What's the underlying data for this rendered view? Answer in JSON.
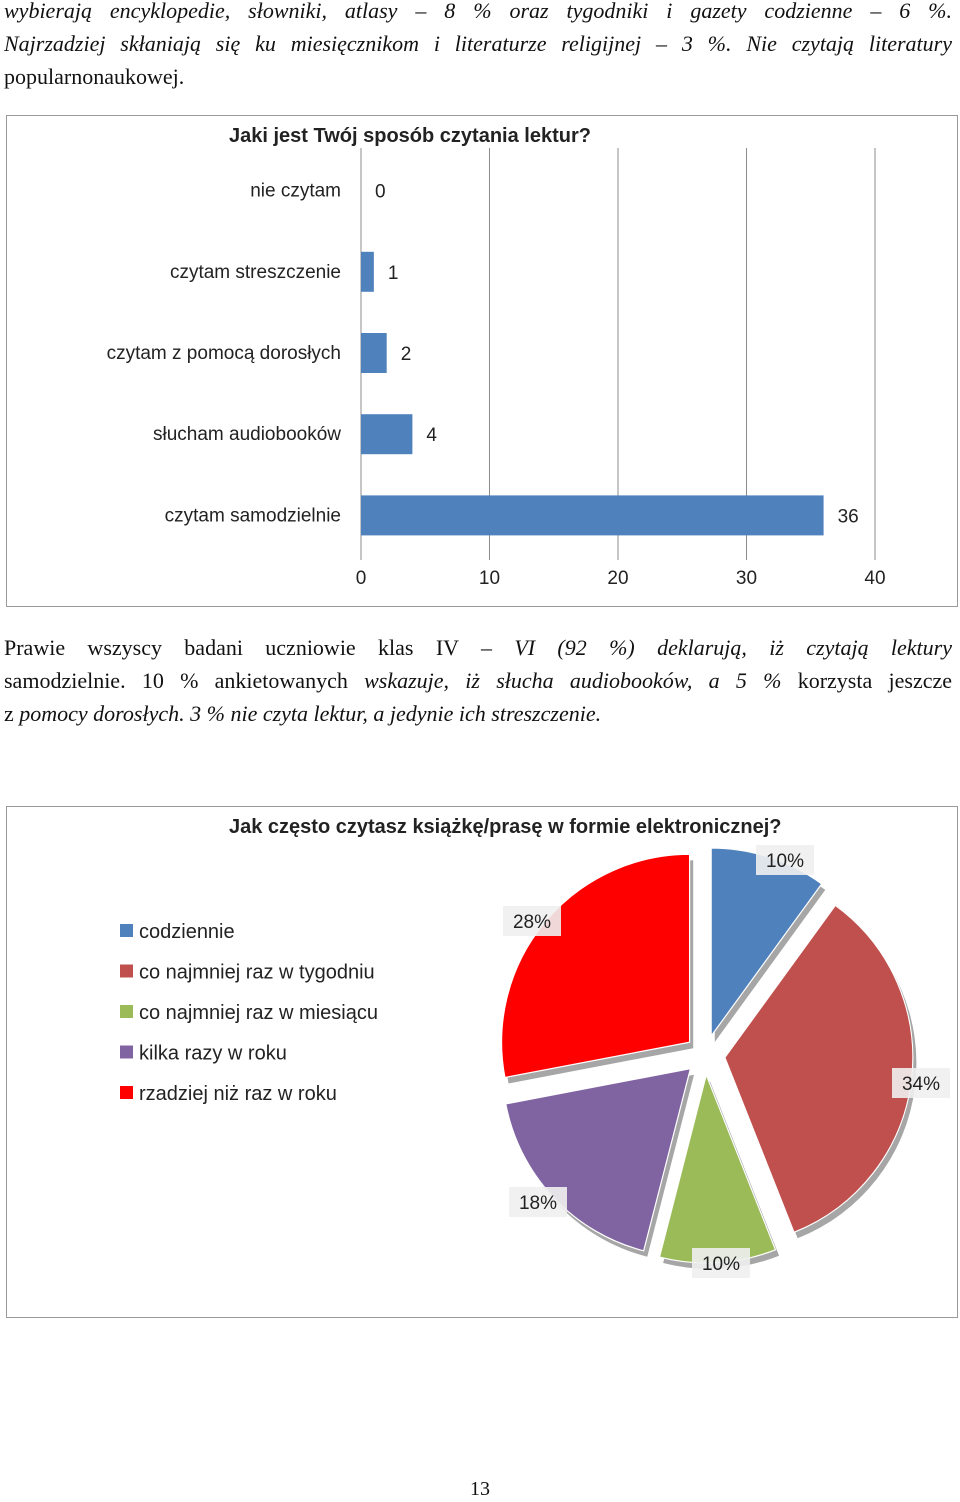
{
  "top_paragraph": {
    "line1": "wybierają encyklopedie, słowniki, atlasy – 8 % oraz tygodniki i gazety codzienne – 6 %.",
    "line2": "Najrzadziej skłaniają się ku miesięcznikom i literaturze religijnej – 3 %. Nie czytają literatury",
    "line3": "popularnonaukowej."
  },
  "chart1": {
    "chart_data": {
      "type": "bar",
      "orientation": "horizontal",
      "title": "Jaki jest Twój sposób czytania lektur?",
      "categories": [
        "nie czytam",
        "czytam streszczenie",
        "czytam z pomocą dorosłych",
        "słucham audiobooków",
        "czytam samodzielnie"
      ],
      "values": [
        0,
        1,
        2,
        4,
        36
      ],
      "xlim": [
        0,
        40
      ],
      "xticks": [
        "0",
        "10",
        "20",
        "30",
        "40"
      ],
      "grid": true,
      "color": "#4f81bd"
    }
  },
  "middle_paragraph": {
    "a1": "Prawie wszyscy badani uczniowie klas IV ",
    "a2": "– VI (92 %) deklarują, iż czytają lektury",
    "b1": "samodzielnie. 10 % ankietowanych ",
    "b2": "wskazuje, iż słucha audiobooków, a 5 % ",
    "b3": "korzysta jeszcze",
    "c1": "z ",
    "c2": "pomocy dorosłych. 3 % nie czyta lektur, a jedynie ich streszczenie."
  },
  "chart2": {
    "chart_data": {
      "type": "pie",
      "title": "Jak często czytasz książkę/prasę w formie elektronicznej?",
      "categories": [
        "codziennie",
        "co najmniej raz w tygodniu",
        "co najmniej raz w miesiącu",
        "kilka razy w roku",
        "rzadziej niż raz w roku"
      ],
      "values": [
        10,
        34,
        10,
        18,
        28
      ],
      "labels": [
        "10%",
        "34%",
        "10%",
        "18%",
        "28%"
      ],
      "colors": [
        "#4f81bd",
        "#c0504d",
        "#9bbb59",
        "#8064a2",
        "#ff0000"
      ],
      "legend": "left",
      "exploded": true
    }
  },
  "page_number": "13"
}
